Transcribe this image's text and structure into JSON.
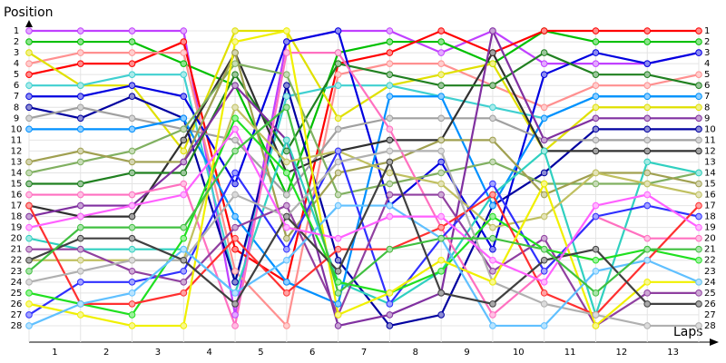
{
  "chart_data": {
    "type": "line",
    "y_axis_label": "Position",
    "x_axis_label": "Laps",
    "x": [
      0,
      1,
      2,
      3,
      4,
      5,
      6,
      7,
      8,
      9,
      10,
      11,
      12,
      13
    ],
    "xlim": [
      0,
      13
    ],
    "xticks": [
      {
        "value": 0.5,
        "label": "1"
      },
      {
        "value": 1.5,
        "label": "2"
      },
      {
        "value": 2.5,
        "label": "3"
      },
      {
        "value": 3.5,
        "label": "4"
      },
      {
        "value": 4.5,
        "label": "5"
      },
      {
        "value": 5.5,
        "label": "6"
      },
      {
        "value": 6.5,
        "label": "7"
      },
      {
        "value": 7.5,
        "label": "8"
      },
      {
        "value": 8.5,
        "label": "9"
      },
      {
        "value": 9.5,
        "label": "10"
      },
      {
        "value": 10.5,
        "label": "11"
      },
      {
        "value": 11.5,
        "label": "12"
      },
      {
        "value": 12.5,
        "label": "13"
      }
    ],
    "ylim": [
      29.5,
      0
    ],
    "yticks": [
      1,
      2,
      3,
      4,
      5,
      6,
      7,
      8,
      9,
      10,
      11,
      12,
      13,
      14,
      15,
      16,
      17,
      18,
      19,
      20,
      21,
      22,
      23,
      24,
      25,
      26,
      27,
      28
    ],
    "grid": true,
    "series": [
      {
        "color": "#c040ff",
        "values": [
          1,
          1,
          1,
          1,
          27,
          2,
          1,
          1,
          3,
          1,
          4,
          4,
          4,
          3
        ]
      },
      {
        "color": "#00c000",
        "values": [
          2,
          2,
          2,
          4,
          6,
          16,
          3,
          2,
          2,
          4,
          1,
          2,
          2,
          2
        ]
      },
      {
        "color": "#ff0000",
        "values": [
          5,
          4,
          4,
          2,
          21,
          24,
          4,
          3,
          1,
          3,
          1,
          1,
          1,
          1
        ]
      },
      {
        "color": "#ff9090",
        "values": [
          4,
          3,
          3,
          3,
          23,
          28,
          5,
          4,
          4,
          6,
          8,
          6,
          6,
          5
        ]
      },
      {
        "color": "#e0e000",
        "values": [
          3,
          6,
          6,
          12,
          1,
          1,
          9,
          6,
          5,
          4,
          12,
          8,
          8,
          8
        ]
      },
      {
        "color": "#40d0d0",
        "values": [
          6,
          6,
          5,
          5,
          24,
          7,
          6,
          6,
          7,
          8,
          9,
          7,
          7,
          7
        ]
      },
      {
        "color": "#0000e0",
        "values": [
          7,
          7,
          6,
          7,
          15,
          2,
          1,
          17,
          13,
          21,
          5,
          3,
          4,
          3
        ]
      },
      {
        "color": "#0000a0",
        "values": [
          8,
          9,
          7,
          9,
          24,
          6,
          22,
          28,
          27,
          17,
          14,
          10,
          10,
          10
        ]
      },
      {
        "color": "#a0a0a0",
        "values": [
          9,
          8,
          9,
          10,
          11,
          16,
          10,
          9,
          9,
          9,
          11,
          11,
          11,
          11
        ]
      },
      {
        "color": "#0090ff",
        "values": [
          10,
          10,
          10,
          9,
          18,
          24,
          26,
          7,
          7,
          17,
          9,
          7,
          7,
          7
        ]
      },
      {
        "color": "#303030",
        "values": [
          17,
          18,
          18,
          11,
          3,
          14,
          12,
          11,
          11,
          3,
          12,
          12,
          12,
          12
        ]
      },
      {
        "color": "#208020",
        "values": [
          15,
          15,
          14,
          14,
          5,
          12,
          4,
          5,
          6,
          6,
          3,
          5,
          5,
          6
        ]
      },
      {
        "color": "#80b060",
        "values": [
          14,
          13,
          12,
          10,
          4,
          5,
          16,
          15,
          14,
          13,
          15,
          15,
          15,
          14
        ]
      },
      {
        "color": "#a0a050",
        "values": [
          13,
          12,
          13,
          13,
          3,
          20,
          14,
          13,
          11,
          11,
          16,
          14,
          14,
          15
        ]
      },
      {
        "color": "#8030a0",
        "values": [
          18,
          17,
          17,
          13,
          6,
          11,
          28,
          27,
          25,
          1,
          11,
          9,
          9,
          9
        ]
      },
      {
        "color": "#30d0c0",
        "values": [
          20,
          21,
          21,
          21,
          25,
          11,
          24,
          26,
          23,
          16,
          12,
          27,
          13,
          14
        ]
      },
      {
        "color": "#ff70c0",
        "values": [
          16,
          16,
          16,
          15,
          28,
          3,
          3,
          10,
          19,
          27,
          23,
          18,
          20,
          20
        ]
      },
      {
        "color": "#c0c060",
        "values": [
          22,
          22,
          22,
          22,
          8,
          13,
          12,
          14,
          15,
          19,
          18,
          14,
          15,
          16
        ]
      },
      {
        "color": "#3030ff",
        "values": [
          27,
          24,
          24,
          23,
          14,
          21,
          12,
          26,
          20,
          15,
          23,
          18,
          17,
          18
        ]
      },
      {
        "color": "#9040a0",
        "values": [
          21,
          21,
          23,
          24,
          19,
          17,
          27,
          16,
          16,
          23,
          20,
          28,
          25,
          25
        ]
      },
      {
        "color": "#20e020",
        "values": [
          25,
          26,
          27,
          20,
          9,
          14,
          24,
          25,
          23,
          18,
          21,
          22,
          21,
          22
        ]
      },
      {
        "color": "#ff3030",
        "values": [
          17,
          26,
          26,
          25,
          20,
          25,
          21,
          21,
          19,
          16,
          25,
          27,
          22,
          17
        ]
      },
      {
        "color": "#b0b0b0",
        "values": [
          24,
          23,
          22,
          22,
          16,
          18,
          13,
          12,
          12,
          24,
          26,
          27,
          28,
          28
        ]
      },
      {
        "color": "#f0f000",
        "values": [
          26,
          27,
          28,
          28,
          2,
          1,
          27,
          25,
          22,
          24,
          15,
          28,
          24,
          24
        ]
      },
      {
        "color": "#60c0ff",
        "values": [
          28,
          26,
          25,
          21,
          25,
          22,
          17,
          17,
          20,
          28,
          28,
          23,
          22,
          24
        ]
      },
      {
        "color": "#404040",
        "values": [
          22,
          20,
          20,
          22,
          26,
          18,
          23,
          13,
          25,
          26,
          22,
          21,
          26,
          26
        ]
      },
      {
        "color": "#ff60ff",
        "values": [
          19,
          18,
          17,
          16,
          10,
          19,
          20,
          18,
          18,
          22,
          24,
          17,
          16,
          19
        ]
      },
      {
        "color": "#40c040",
        "values": [
          23,
          19,
          19,
          19,
          12,
          8,
          25,
          21,
          20,
          20,
          21,
          25,
          21,
          21
        ]
      }
    ]
  }
}
